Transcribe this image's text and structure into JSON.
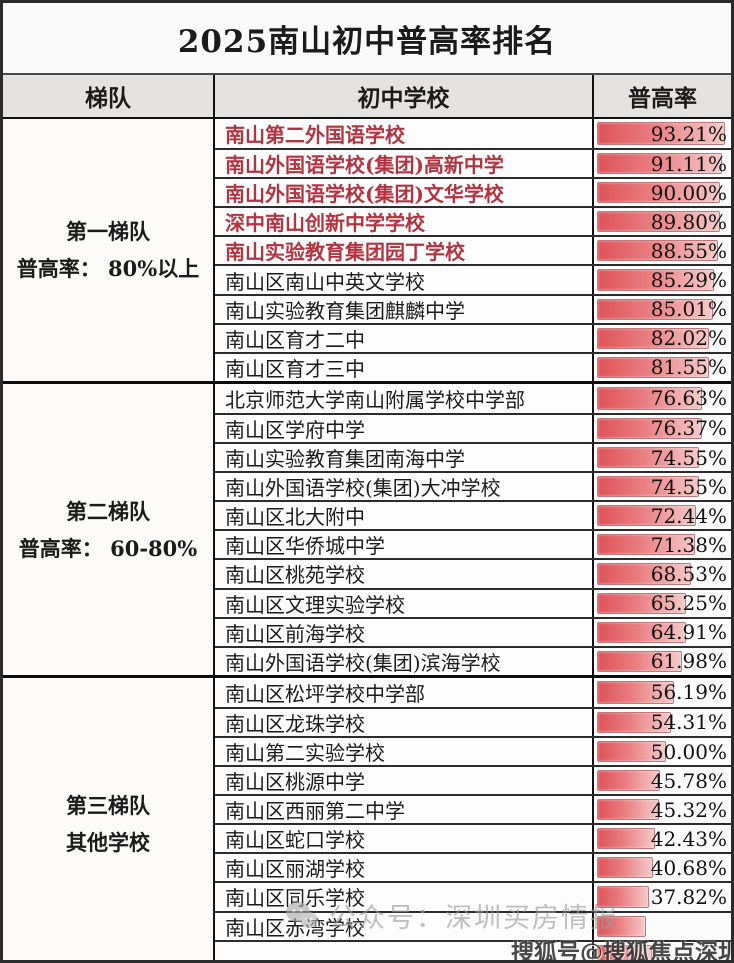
{
  "title": "2025南山初中普高率排名",
  "columns": {
    "tier": "梯队",
    "school": "初中学校",
    "rate": "普高率"
  },
  "colors": {
    "red_school_text": "#b23440",
    "bar_gradient_start": "#de5358",
    "bar_gradient_end": "#f6c9c9",
    "header_bg": "#e4e3e1",
    "border": "#111111"
  },
  "watermarks": {
    "wechat_text": "公众号：深圳买房情报",
    "sohu_text": "搜狐号@搜狐焦点深圳站"
  },
  "chart_data": {
    "type": "table",
    "title": "2025南山初中普高率排名",
    "columns": [
      "梯队",
      "初中学校",
      "普高率"
    ],
    "bar_style": "red data bar, length proportional to percentage (0-100% of cell width)",
    "groups": [
      {
        "tier": "第一梯队",
        "criteria": "普高率： 80%以上",
        "schools": [
          {
            "name": "南山第二外国语学校",
            "rate_label": "93.21%",
            "bar_percent": 93.21,
            "red": true
          },
          {
            "name": "南山外国语学校(集团)高新中学",
            "rate_label": "91.11%",
            "bar_percent": 91.11,
            "red": true
          },
          {
            "name": "南山外国语学校(集团)文华学校",
            "rate_label": "90.00%",
            "bar_percent": 90.0,
            "red": true
          },
          {
            "name": "深中南山创新中学学校",
            "rate_label": "89.80%",
            "bar_percent": 89.8,
            "red": true
          },
          {
            "name": "南山实验教育集团园丁学校",
            "rate_label": "88.55%",
            "bar_percent": 88.55,
            "red": true
          },
          {
            "name": "南山区南山中英文学校",
            "rate_label": "85.29%",
            "bar_percent": 85.29,
            "red": false
          },
          {
            "name": "南山实验教育集团麒麟中学",
            "rate_label": "85.01%",
            "bar_percent": 85.01,
            "red": false
          },
          {
            "name": "南山区育才二中",
            "rate_label": "82.02%",
            "bar_percent": 82.02,
            "red": false
          },
          {
            "name": "南山区育才三中",
            "rate_label": "81.55%",
            "bar_percent": 81.55,
            "red": false
          }
        ]
      },
      {
        "tier": "第二梯队",
        "criteria": "普高率： 60-80%",
        "schools": [
          {
            "name": "北京师范大学南山附属学校中学部",
            "rate_label": "76.63%",
            "bar_percent": 76.63,
            "red": false
          },
          {
            "name": "南山区学府中学",
            "rate_label": "76.37%",
            "bar_percent": 76.37,
            "red": false
          },
          {
            "name": "南山实验教育集团南海中学",
            "rate_label": "74.55%",
            "bar_percent": 74.55,
            "red": false
          },
          {
            "name": "南山外国语学校(集团)大冲学校",
            "rate_label": "74.55%",
            "bar_percent": 74.55,
            "red": false
          },
          {
            "name": "南山区北大附中",
            "rate_label": "72.44%",
            "bar_percent": 72.44,
            "red": false
          },
          {
            "name": "南山区华侨城中学",
            "rate_label": "71.38%",
            "bar_percent": 71.38,
            "red": false
          },
          {
            "name": "南山区桃苑学校",
            "rate_label": "68.53%",
            "bar_percent": 68.53,
            "red": false
          },
          {
            "name": "南山区文理实验学校",
            "rate_label": "65.25%",
            "bar_percent": 65.25,
            "red": false
          },
          {
            "name": "南山区前海学校",
            "rate_label": "64.91%",
            "bar_percent": 64.91,
            "red": false
          },
          {
            "name": "南山外国语学校(集团)滨海学校",
            "rate_label": "61.98%",
            "bar_percent": 61.98,
            "red": false
          }
        ]
      },
      {
        "tier": "第三梯队",
        "criteria": "其他学校",
        "schools": [
          {
            "name": "南山区松坪学校中学部",
            "rate_label": "56.19%",
            "bar_percent": 56.19,
            "red": false
          },
          {
            "name": "南山区龙珠学校",
            "rate_label": "54.31%",
            "bar_percent": 54.31,
            "red": false
          },
          {
            "name": "南山第二实验学校",
            "rate_label": "50.00%",
            "bar_percent": 50.0,
            "red": false
          },
          {
            "name": "南山区桃源中学",
            "rate_label": "45.78%",
            "bar_percent": 45.78,
            "red": false
          },
          {
            "name": "南山区西丽第二中学",
            "rate_label": "45.32%",
            "bar_percent": 45.32,
            "red": false
          },
          {
            "name": "南山区蛇口学校",
            "rate_label": "42.43%",
            "bar_percent": 42.43,
            "red": false
          },
          {
            "name": "南山区丽湖学校",
            "rate_label": "40.68%",
            "bar_percent": 40.68,
            "red": false
          },
          {
            "name": "南山区同乐学校",
            "rate_label": "37.82%",
            "bar_percent": 37.82,
            "red": false
          },
          {
            "name": "南山区赤湾学校",
            "rate_label": "",
            "bar_percent": 36,
            "red": false,
            "rate_obscured_by_watermark": true
          },
          {
            "name": "",
            "rate_label": "",
            "bar_percent": 40,
            "red": false,
            "partial": true
          }
        ]
      }
    ]
  }
}
